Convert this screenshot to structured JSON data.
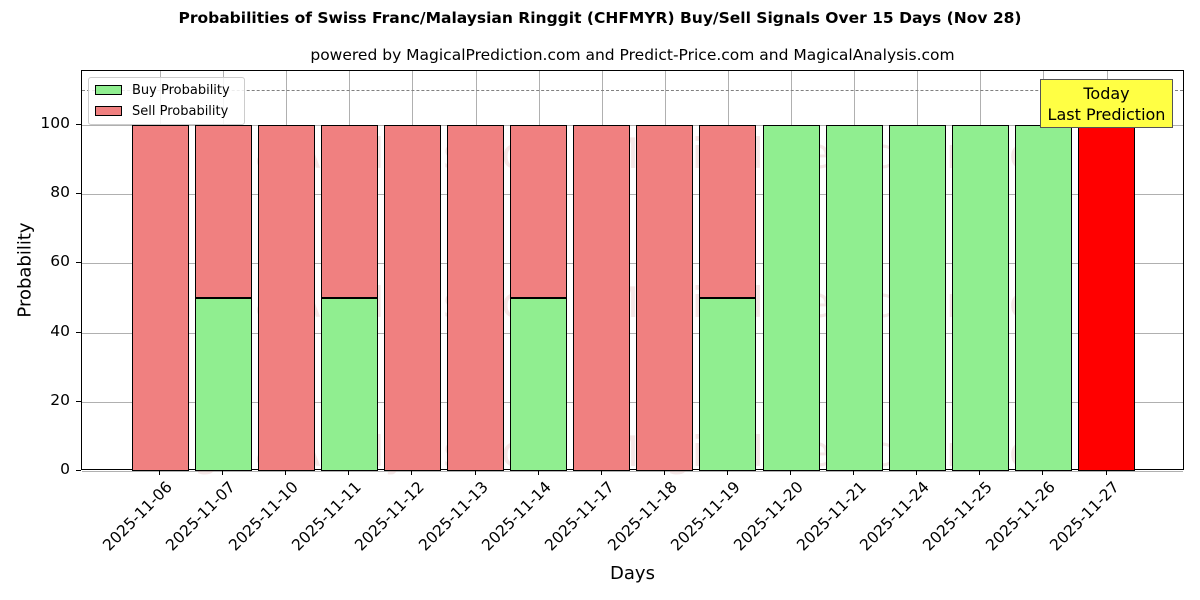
{
  "chart_data": {
    "type": "bar",
    "stacked": true,
    "title": "Probabilities of Swiss Franc/Malaysian Ringgit (CHFMYR) Buy/Sell Signals Over 15 Days (Nov 28)",
    "subtitle": "powered by MagicalPrediction.com and Predict-Price.com and MagicalAnalysis.com",
    "xlabel": "Days",
    "ylabel": "Probability",
    "ylim": [
      0,
      115
    ],
    "yticks": [
      0,
      20,
      40,
      60,
      80,
      100
    ],
    "grid": true,
    "legend_position": "upper left",
    "reference_line": {
      "y": 110,
      "style": "dashed",
      "color": "#808080"
    },
    "categories": [
      "2025-11-06",
      "2025-11-07",
      "2025-11-10",
      "2025-11-11",
      "2025-11-12",
      "2025-11-13",
      "2025-11-14",
      "2025-11-17",
      "2025-11-18",
      "2025-11-19",
      "2025-11-20",
      "2025-11-21",
      "2025-11-24",
      "2025-11-25",
      "2025-11-26",
      "2025-11-27"
    ],
    "series": [
      {
        "name": "Buy Probability",
        "color": "#90ee90",
        "values": [
          0,
          50,
          0,
          50,
          0,
          0,
          50,
          0,
          0,
          50,
          100,
          100,
          100,
          100,
          100,
          0
        ]
      },
      {
        "name": "Sell Probability",
        "color": "#f08080",
        "values": [
          100,
          50,
          100,
          50,
          100,
          100,
          50,
          100,
          100,
          50,
          0,
          0,
          0,
          0,
          0,
          100
        ]
      }
    ],
    "highlight": {
      "category": "2025-11-27",
      "color": "#ff0000",
      "annotation": [
        "Today",
        "Last Prediction"
      ]
    },
    "watermarks": [
      "MagicalAnalysis.com",
      "MagicalPrediction.com"
    ]
  },
  "legend": {
    "buy_label": "Buy Probability",
    "sell_label": "Sell Probability"
  },
  "annotation": {
    "line1": "Today",
    "line2": "Last Prediction"
  }
}
